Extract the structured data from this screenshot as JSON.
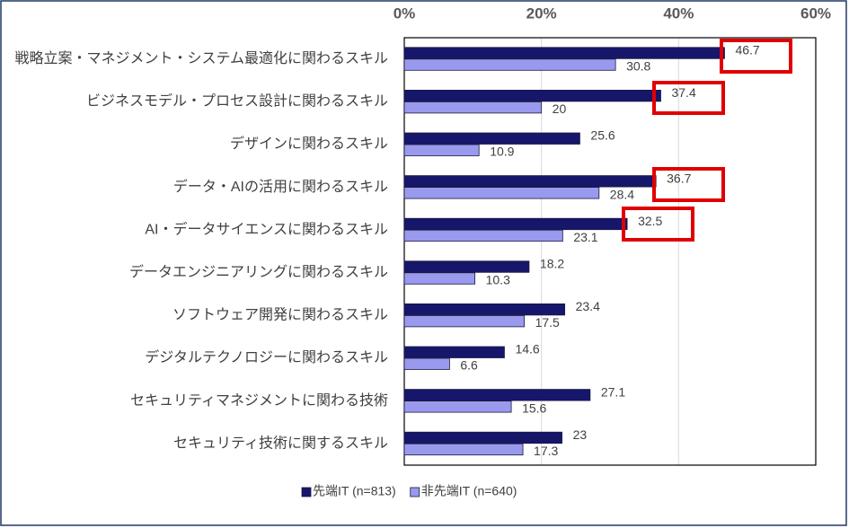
{
  "chart_data": {
    "type": "bar",
    "orientation": "horizontal",
    "categories": [
      "戦略立案・マネジメント・システム最適化に関わるスキル",
      "ビジネスモデル・プロセス設計に関わるスキル",
      "デザインに関わるスキル",
      "データ・AIの活用に関わるスキル",
      "AI・データサイエンスに関わるスキル",
      "データエンジニアリングに関わるスキル",
      "ソフトウェア開発に関わるスキル",
      "デジタルテクノロジーに関わるスキル",
      "セキュリティマネジメントに関わる技術",
      "セキュリティ技術に関するスキル"
    ],
    "series": [
      {
        "name": "先端IT (n=813)",
        "color": "#16166b",
        "values": [
          46.7,
          37.4,
          25.6,
          36.7,
          32.5,
          18.2,
          23.4,
          14.6,
          27.1,
          23
        ]
      },
      {
        "name": "非先端IT (n=640)",
        "color": "#9999ee",
        "values": [
          30.8,
          20,
          10.9,
          28.4,
          23.1,
          10.3,
          17.5,
          6.6,
          15.6,
          17.3
        ]
      }
    ],
    "xlim": [
      0,
      60
    ],
    "xticks": [
      {
        "value": 0,
        "label": "0%"
      },
      {
        "value": 20,
        "label": "20%"
      },
      {
        "value": 40,
        "label": "40%"
      },
      {
        "value": 60,
        "label": "60%"
      }
    ],
    "grid": true,
    "legend": "bottom"
  }
}
